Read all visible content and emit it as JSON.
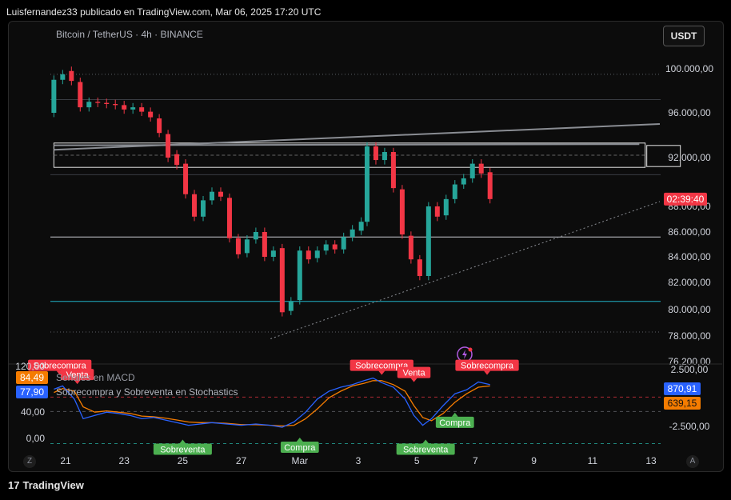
{
  "header": {
    "title": "Luisfernandez33 publicado en TradingView.com, Mar 06, 2025 17:20 UTC"
  },
  "symbol": {
    "label": "Bitcoin / TetherUS · 4h · BINANCE"
  },
  "currency_button": "USDT",
  "countdown_label": "02:39:40",
  "footer": {
    "brand": "TradingView",
    "brand_mark": "17"
  },
  "buttons": {
    "z": "Z",
    "a": "A"
  },
  "chart_data": {
    "type": "candlestick",
    "price_axis": {
      "range": [
        76200,
        102400
      ],
      "ticks": [
        {
          "value": 100000,
          "label": "100.000,00"
        },
        {
          "value": 96000,
          "label": "96.000,00"
        },
        {
          "value": 92000,
          "label": "92.000,00"
        },
        {
          "value": 88000,
          "label": "88.000,00"
        },
        {
          "value": 86000,
          "label": "86.000,00"
        },
        {
          "value": 84000,
          "label": "84.000,00"
        },
        {
          "value": 82000,
          "label": "82.000,00"
        },
        {
          "value": 80000,
          "label": "80.000,00"
        },
        {
          "value": 78000,
          "label": "78.000,00"
        },
        {
          "value": 76200,
          "label": "76.200,00"
        }
      ],
      "current_price": 88600,
      "current_price_color": "#f23645"
    },
    "time_axis": {
      "ticks": [
        {
          "day": 21,
          "label": "21"
        },
        {
          "day": 23,
          "label": "23"
        },
        {
          "day": 25,
          "label": "25"
        },
        {
          "day": 27,
          "label": "27"
        },
        {
          "day": 29,
          "label": "Mar"
        },
        {
          "day": 31,
          "label": "3"
        },
        {
          "day": 33,
          "label": "5"
        },
        {
          "day": 35,
          "label": "7"
        },
        {
          "day": 37,
          "label": "9"
        },
        {
          "day": 39,
          "label": "11"
        },
        {
          "day": 41,
          "label": "13"
        }
      ]
    },
    "candles": [
      {
        "d": 20.6,
        "o": 96000,
        "c": 99000
      },
      {
        "d": 20.9,
        "o": 99000,
        "c": 99500
      },
      {
        "d": 21.2,
        "o": 99800,
        "c": 98900
      },
      {
        "d": 21.5,
        "o": 98800,
        "c": 96500
      },
      {
        "d": 21.8,
        "o": 96500,
        "c": 97000
      },
      {
        "d": 22.1,
        "o": 97000,
        "c": 96900
      },
      {
        "d": 22.4,
        "o": 96900,
        "c": 96800
      },
      {
        "d": 22.7,
        "o": 96800,
        "c": 96700
      },
      {
        "d": 23.0,
        "o": 96700,
        "c": 96300
      },
      {
        "d": 23.3,
        "o": 96300,
        "c": 96500
      },
      {
        "d": 23.6,
        "o": 96500,
        "c": 96100
      },
      {
        "d": 23.9,
        "o": 96100,
        "c": 95600
      },
      {
        "d": 24.2,
        "o": 95500,
        "c": 94200
      },
      {
        "d": 24.5,
        "o": 94100,
        "c": 92000
      },
      {
        "d": 24.8,
        "o": 92300,
        "c": 91400
      },
      {
        "d": 25.1,
        "o": 91500,
        "c": 89000
      },
      {
        "d": 25.4,
        "o": 89000,
        "c": 87200
      },
      {
        "d": 25.7,
        "o": 87200,
        "c": 88500
      },
      {
        "d": 26.0,
        "o": 88500,
        "c": 89200
      },
      {
        "d": 26.3,
        "o": 89200,
        "c": 88800
      },
      {
        "d": 26.6,
        "o": 88700,
        "c": 85500
      },
      {
        "d": 26.9,
        "o": 85500,
        "c": 84200
      },
      {
        "d": 27.2,
        "o": 84300,
        "c": 85400
      },
      {
        "d": 27.5,
        "o": 85400,
        "c": 86000
      },
      {
        "d": 27.8,
        "o": 86000,
        "c": 84000
      },
      {
        "d": 28.1,
        "o": 84000,
        "c": 84500
      },
      {
        "d": 28.4,
        "o": 84700,
        "c": 79800
      },
      {
        "d": 28.7,
        "o": 79900,
        "c": 80600
      },
      {
        "d": 29.0,
        "o": 80700,
        "c": 84500
      },
      {
        "d": 29.3,
        "o": 84500,
        "c": 83800
      },
      {
        "d": 29.6,
        "o": 83900,
        "c": 84500
      },
      {
        "d": 29.9,
        "o": 84500,
        "c": 85000
      },
      {
        "d": 30.2,
        "o": 85000,
        "c": 84600
      },
      {
        "d": 30.5,
        "o": 84600,
        "c": 85600
      },
      {
        "d": 30.8,
        "o": 85600,
        "c": 86200
      },
      {
        "d": 31.1,
        "o": 86100,
        "c": 86800
      },
      {
        "d": 31.3,
        "o": 86800,
        "c": 93000
      },
      {
        "d": 31.6,
        "o": 93000,
        "c": 91800
      },
      {
        "d": 31.9,
        "o": 91800,
        "c": 92500
      },
      {
        "d": 32.2,
        "o": 92500,
        "c": 89500
      },
      {
        "d": 32.5,
        "o": 89400,
        "c": 85800
      },
      {
        "d": 32.8,
        "o": 85700,
        "c": 83800
      },
      {
        "d": 33.1,
        "o": 83800,
        "c": 82500
      },
      {
        "d": 33.4,
        "o": 82500,
        "c": 88000
      },
      {
        "d": 33.7,
        "o": 88000,
        "c": 87200
      },
      {
        "d": 34.0,
        "o": 87300,
        "c": 88600
      },
      {
        "d": 34.3,
        "o": 88600,
        "c": 89800
      },
      {
        "d": 34.6,
        "o": 89800,
        "c": 90300
      },
      {
        "d": 34.9,
        "o": 90300,
        "c": 91500
      },
      {
        "d": 35.2,
        "o": 91500,
        "c": 90700
      },
      {
        "d": 35.5,
        "o": 90800,
        "c": 88600
      }
    ],
    "horizontal_levels": [
      {
        "price": 99500,
        "style": "dotted",
        "color": "#5d6066"
      },
      {
        "price": 97200,
        "style": "solid",
        "color": "#3a3d43"
      },
      {
        "price": 90600,
        "style": "solid",
        "color": "#3a3d43"
      },
      {
        "price": 85600,
        "style": "solid",
        "color": "#c9cbd1"
      },
      {
        "price": 80600,
        "style": "solid",
        "color": "#20b2c8"
      },
      {
        "price": 78300,
        "style": "dotted",
        "color": "#5d6066"
      }
    ],
    "rectangle_zone": {
      "d1": 20.6,
      "d2": 40.8,
      "p_top": 93300,
      "p_bottom": 91200
    },
    "trendlines": [
      {
        "d1": 20.6,
        "p1": 92700,
        "d2": 41.3,
        "p2": 95000,
        "color": "#8a8d93",
        "style": "solid"
      },
      {
        "d1": 20.6,
        "p1": 93100,
        "d2": 40.6,
        "p2": 93200,
        "color": "#8a8d93",
        "style": "solid"
      },
      {
        "d1": 28.0,
        "p1": 77800,
        "d2": 41.3,
        "p2": 88400,
        "color": "#8a8d93",
        "style": "dotted"
      }
    ],
    "indicator": {
      "legend_macd": "Señales en MACD",
      "legend_stoch": "Sobrecompra y Sobreventa en Stochastics",
      "left_axis": [
        {
          "value": 120,
          "label": "120,00"
        },
        {
          "value": 40,
          "label": "40,00"
        },
        {
          "value": 0,
          "label": "0,00"
        }
      ],
      "left_badges": [
        {
          "value": 84.49,
          "label": "84,49",
          "color": "#f57c00"
        },
        {
          "value": 77.9,
          "label": "77,90",
          "color": "#2962ff"
        }
      ],
      "right_axis": [
        {
          "value": 2500,
          "label": "2.500,00"
        },
        {
          "value": -2500,
          "label": "-2.500,00"
        }
      ],
      "right_badges": [
        {
          "label": "870,91",
          "color": "#2962ff"
        },
        {
          "label": "639,15",
          "color": "#f57c00"
        }
      ],
      "overbought_level": 80,
      "oversold_level": 20,
      "k_line": [
        [
          20.6,
          75
        ],
        [
          20.9,
          80
        ],
        [
          21.3,
          60
        ],
        [
          21.6,
          30
        ],
        [
          22.0,
          35
        ],
        [
          22.4,
          40
        ],
        [
          22.8,
          38
        ],
        [
          23.2,
          35
        ],
        [
          23.6,
          30
        ],
        [
          24.0,
          32
        ],
        [
          24.4,
          28
        ],
        [
          24.8,
          24
        ],
        [
          25.2,
          20
        ],
        [
          25.6,
          22
        ],
        [
          26.0,
          24
        ],
        [
          26.5,
          22
        ],
        [
          27.0,
          20
        ],
        [
          27.5,
          22
        ],
        [
          28.0,
          20
        ],
        [
          28.4,
          17
        ],
        [
          28.8,
          25
        ],
        [
          29.2,
          40
        ],
        [
          29.6,
          60
        ],
        [
          30.0,
          72
        ],
        [
          30.4,
          78
        ],
        [
          30.8,
          82
        ],
        [
          31.2,
          88
        ],
        [
          31.5,
          92
        ],
        [
          31.8,
          85
        ],
        [
          32.2,
          78
        ],
        [
          32.6,
          60
        ],
        [
          32.9,
          35
        ],
        [
          33.2,
          20
        ],
        [
          33.5,
          30
        ],
        [
          33.9,
          50
        ],
        [
          34.3,
          68
        ],
        [
          34.7,
          74
        ],
        [
          35.1,
          86
        ],
        [
          35.5,
          82
        ]
      ],
      "d_line": [
        [
          20.6,
          70
        ],
        [
          20.9,
          76
        ],
        [
          21.3,
          72
        ],
        [
          21.6,
          48
        ],
        [
          22.0,
          40
        ],
        [
          22.4,
          42
        ],
        [
          22.8,
          40
        ],
        [
          23.2,
          38
        ],
        [
          23.6,
          34
        ],
        [
          24.0,
          33
        ],
        [
          24.4,
          31
        ],
        [
          24.8,
          28
        ],
        [
          25.2,
          25
        ],
        [
          25.6,
          24
        ],
        [
          26.0,
          24
        ],
        [
          26.5,
          23
        ],
        [
          27.0,
          21
        ],
        [
          27.5,
          21
        ],
        [
          28.0,
          20
        ],
        [
          28.4,
          19
        ],
        [
          28.8,
          20
        ],
        [
          29.2,
          30
        ],
        [
          29.6,
          45
        ],
        [
          30.0,
          62
        ],
        [
          30.4,
          72
        ],
        [
          30.8,
          80
        ],
        [
          31.2,
          84
        ],
        [
          31.5,
          88
        ],
        [
          31.8,
          88
        ],
        [
          32.2,
          82
        ],
        [
          32.6,
          72
        ],
        [
          32.9,
          50
        ],
        [
          33.2,
          32
        ],
        [
          33.5,
          27
        ],
        [
          33.9,
          38
        ],
        [
          34.3,
          55
        ],
        [
          34.7,
          68
        ],
        [
          35.1,
          78
        ],
        [
          35.5,
          80
        ]
      ],
      "signals": [
        {
          "label": "Sobrecompra",
          "d": 20.8,
          "value": 98,
          "kind": "sell",
          "pointer": "down"
        },
        {
          "label": "Venta",
          "d": 21.4,
          "value": 84,
          "kind": "sell",
          "pointer": "down"
        },
        {
          "label": "Sobreventa",
          "d": 25.0,
          "value": -3,
          "kind": "buy",
          "pointer": "up"
        },
        {
          "label": "Compra",
          "d": 29.0,
          "value": 0,
          "kind": "buy",
          "pointer": "up"
        },
        {
          "label": "Sobrecompra",
          "d": 31.8,
          "value": 98,
          "kind": "sell",
          "pointer": "down"
        },
        {
          "label": "Venta",
          "d": 32.9,
          "value": 87,
          "kind": "sell",
          "pointer": "down"
        },
        {
          "label": "Compra",
          "d": 34.3,
          "value": 38,
          "kind": "buy",
          "pointer": "up"
        },
        {
          "label": "Sobreventa",
          "d": 33.3,
          "value": -3,
          "kind": "buy",
          "pointer": "up"
        },
        {
          "label": "Sobrecompra",
          "d": 35.4,
          "value": 98,
          "kind": "sell",
          "pointer": "down"
        }
      ]
    }
  }
}
